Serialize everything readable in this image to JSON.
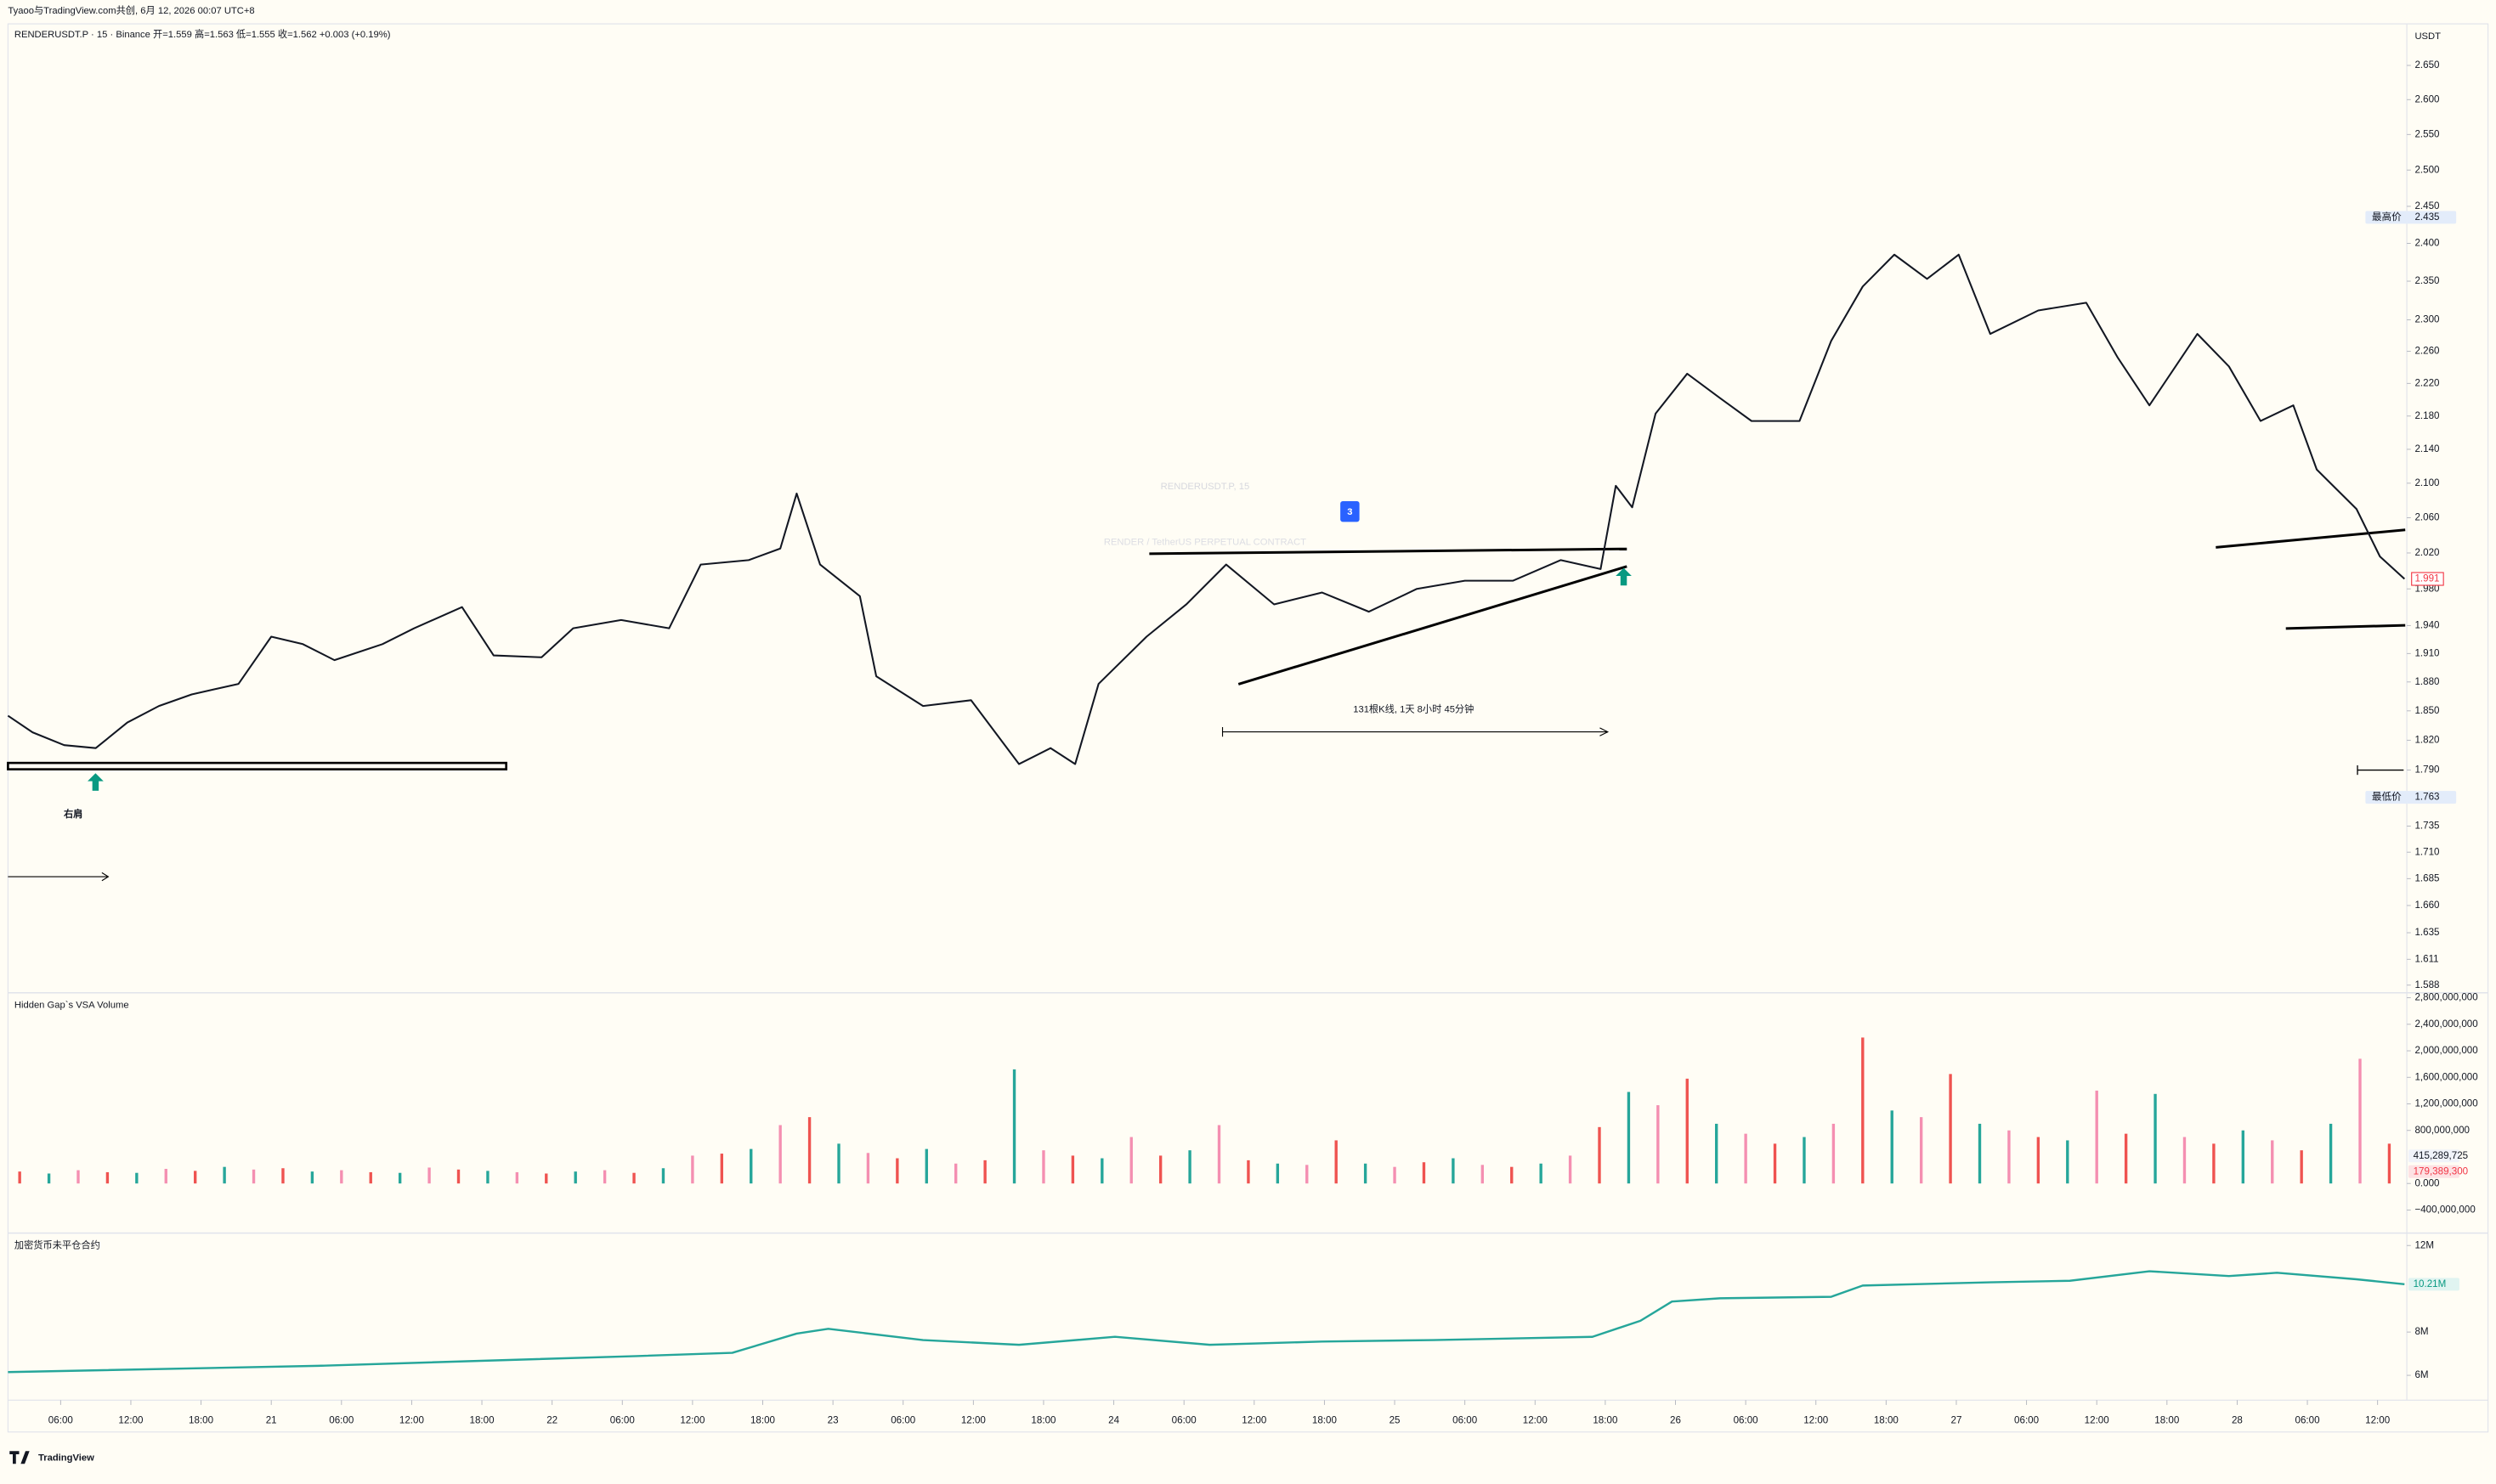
{
  "header": {
    "credit": "Tyaoo与TradingView.com共创, 6月 12, 2026 00:07 UTC+8",
    "logo": "TradingView"
  },
  "chart_data": [
    {
      "type": "line",
      "title": "RENDERUSDT.P, 15",
      "subtitle": "RENDER / TetherUS PERPETUAL CONTRACT",
      "legend": "RENDERUSDT.P · 15 · Binance  开=1.559  高=1.563  低=1.555  收=1.562  +0.003 (+0.19%)",
      "axis_unit": "USDT",
      "log": true,
      "grid": false,
      "color": "#131722",
      "x": [
        1.5,
        3.6,
        6.3,
        9.0,
        11.7,
        14.4,
        17.2,
        21.2,
        24.0,
        26.7,
        29.4,
        33.5,
        36.2,
        40.3,
        43.0,
        47.1,
        49.8,
        53.9,
        58.0,
        60.7,
        64.8,
        67.5,
        68.9,
        70.9,
        74.3,
        75.7,
        79.7,
        83.8,
        87.9,
        90.6,
        92.7,
        94.7,
        98.8,
        102.2,
        105.6,
        109.7,
        113.8,
        117.8,
        121.9,
        126.0,
        130.1,
        134.2,
        137.6,
        138.9,
        140.3,
        142.3,
        145.0,
        147.8,
        150.5,
        154.6,
        157.3,
        160.0,
        162.7,
        165.5,
        168.2,
        170.9,
        175.0,
        179.1,
        181.8,
        184.5,
        188.6,
        191.3,
        194.0,
        196.8,
        198.8,
        202.2,
        204.2,
        206.3
      ],
      "values": [
        1.845,
        1.828,
        1.815,
        1.812,
        1.838,
        1.855,
        1.867,
        1.878,
        1.928,
        1.92,
        1.903,
        1.92,
        1.937,
        1.96,
        1.908,
        1.906,
        1.937,
        1.946,
        1.937,
        2.007,
        2.012,
        2.025,
        2.088,
        2.007,
        1.972,
        1.886,
        1.855,
        1.861,
        1.796,
        1.812,
        1.796,
        1.878,
        1.928,
        1.963,
        2.007,
        1.963,
        1.976,
        1.955,
        1.98,
        1.989,
        1.989,
        2.012,
        2.002,
        2.097,
        2.072,
        2.183,
        2.232,
        2.202,
        2.174,
        2.174,
        2.273,
        2.343,
        2.385,
        2.353,
        2.385,
        2.282,
        2.312,
        2.322,
        2.252,
        2.193,
        2.282,
        2.241,
        2.174,
        2.193,
        2.116,
        2.07,
        2.016,
        1.991
      ],
      "xlim": [
        1.5,
        206.5
      ],
      "ylim": [
        1.584,
        2.712
      ],
      "yticks": [
        {
          "value": 2.65,
          "label": "2.650"
        },
        {
          "value": 2.6,
          "label": "2.600"
        },
        {
          "value": 2.55,
          "label": "2.550"
        },
        {
          "value": 2.5,
          "label": "2.500"
        },
        {
          "value": 2.45,
          "label": "2.450"
        },
        {
          "value": 2.4,
          "label": "2.400"
        },
        {
          "value": 2.35,
          "label": "2.350"
        },
        {
          "value": 2.3,
          "label": "2.300"
        },
        {
          "value": 2.26,
          "label": "2.260"
        },
        {
          "value": 2.22,
          "label": "2.220"
        },
        {
          "value": 2.18,
          "label": "2.180"
        },
        {
          "value": 2.14,
          "label": "2.140"
        },
        {
          "value": 2.1,
          "label": "2.100"
        },
        {
          "value": 2.06,
          "label": "2.060"
        },
        {
          "value": 2.02,
          "label": "2.020"
        },
        {
          "value": 1.98,
          "label": "1.980"
        },
        {
          "value": 1.94,
          "label": "1.940"
        },
        {
          "value": 1.91,
          "label": "1.910"
        },
        {
          "value": 1.88,
          "label": "1.880"
        },
        {
          "value": 1.85,
          "label": "1.850"
        },
        {
          "value": 1.82,
          "label": "1.820"
        },
        {
          "value": 1.79,
          "label": "1.790"
        },
        1.735,
        {
          "value": 1.71,
          "label": "1.710"
        },
        1.685,
        {
          "value": 1.66,
          "label": "1.660"
        },
        1.635,
        1.611,
        1.588
      ],
      "high_label": "最高价",
      "high": 2.435,
      "low_label": "最低价",
      "low": 1.763,
      "last": 1.991,
      "annotations": {
        "shoulder": "右肩",
        "measure": "131根K线, 1天 8小时 45分钟",
        "badge": "3"
      }
    },
    {
      "type": "bar",
      "title": "Hidden Gap`s VSA Volume",
      "colors": [
        "#ef5350",
        "#26a69a",
        "#f48fb1"
      ],
      "x": [
        2.5,
        5,
        7.5,
        10,
        12.5,
        15,
        17.5,
        20,
        22.5,
        25,
        27.5,
        30,
        32.5,
        35,
        37.5,
        40,
        42.5,
        45,
        47.5,
        50,
        52.5,
        55,
        57.5,
        60,
        62.5,
        65,
        67.5,
        70,
        72.5,
        75,
        77.5,
        80,
        82.5,
        85,
        87.5,
        90,
        92.5,
        95,
        97.5,
        100,
        102.5,
        105,
        107.5,
        110,
        112.5,
        115,
        117.5,
        120,
        122.5,
        125,
        127.5,
        130,
        132.5,
        135,
        137.5,
        140,
        142.5,
        145,
        147.5,
        150,
        152.5,
        155,
        157.5,
        160,
        162.5,
        165,
        167.5,
        170,
        172.5,
        175,
        177.5,
        180,
        182.5,
        185,
        187.5,
        190,
        192.5,
        195,
        197.5,
        200,
        202.5,
        205
      ],
      "values": [
        180000000,
        150000000,
        200000000,
        170000000,
        160000000,
        220000000,
        190000000,
        250000000,
        210000000,
        230000000,
        180000000,
        200000000,
        170000000,
        160000000,
        240000000,
        210000000,
        190000000,
        170000000,
        150000000,
        180000000,
        200000000,
        160000000,
        230000000,
        420000000,
        450000000,
        520000000,
        880000000,
        1000000000,
        600000000,
        460000000,
        380000000,
        520000000,
        300000000,
        350000000,
        1720000000,
        500000000,
        420000000,
        380000000,
        700000000,
        420000000,
        500000000,
        880000000,
        350000000,
        300000000,
        280000000,
        650000000,
        300000000,
        250000000,
        320000000,
        380000000,
        280000000,
        250000000,
        300000000,
        420000000,
        850000000,
        1380000000,
        1180000000,
        1580000000,
        900000000,
        750000000,
        600000000,
        700000000,
        900000000,
        2200000000,
        1100000000,
        1000000000,
        1650000000,
        900000000,
        800000000,
        700000000,
        650000000,
        1400000000,
        750000000,
        1350000000,
        700000000,
        600000000,
        800000000,
        650000000,
        500000000,
        900000000,
        1880000000,
        600000000
      ],
      "xlim": [
        1.5,
        206.5
      ],
      "ylim": [
        -700000000,
        2850000000
      ],
      "yticks": [
        {
          "value": 2800000000,
          "label": "2,800,000,000"
        },
        {
          "value": 2400000000,
          "label": "2,400,000,000"
        },
        {
          "value": 2000000000,
          "label": "2,000,000,000"
        },
        {
          "value": 1600000000,
          "label": "1,600,000,000"
        },
        {
          "value": 1200000000,
          "label": "1,200,000,000"
        },
        {
          "value": 800000000,
          "label": "800,000,000"
        },
        {
          "value": 0,
          "label": "0.000"
        },
        {
          "value": -400000000,
          "label": "−400,000,000"
        }
      ],
      "last_values": [
        {
          "value": 415289725,
          "label": "415,289,725"
        },
        {
          "value": 179389300,
          "label": "179,389,300"
        }
      ]
    },
    {
      "type": "line",
      "title": "加密货币未平仓合约",
      "color": "#26a69a",
      "x": [
        1.5,
        28.0,
        55.2,
        63.4,
        68.9,
        71.6,
        79.7,
        87.9,
        96.1,
        104.2,
        113.8,
        123.3,
        136.9,
        141.0,
        143.7,
        147.8,
        157.3,
        160.0,
        170.9,
        177.7,
        184.5,
        191.3,
        195.4,
        202.2,
        206.3
      ],
      "values": [
        6.15,
        6.44,
        6.89,
        7.04,
        7.93,
        8.15,
        7.63,
        7.41,
        7.78,
        7.41,
        7.56,
        7.63,
        7.78,
        8.52,
        9.41,
        9.56,
        9.63,
        10.15,
        10.3,
        10.37,
        10.81,
        10.59,
        10.74,
        10.44,
        10.21
      ],
      "xlim": [
        1.5,
        206.5
      ],
      "ylim": [
        5,
        12.5
      ],
      "yticks": [
        {
          "value": 12,
          "label": "12M"
        },
        {
          "value": 8,
          "label": "8M"
        },
        {
          "value": 6,
          "label": "6M"
        }
      ],
      "last": {
        "value": 10.21,
        "label": "10.21M"
      },
      "xticks": [
        {
          "value": 6,
          "label": "06:00"
        },
        {
          "value": 12,
          "label": "12:00"
        },
        {
          "value": 18,
          "label": "18:00"
        },
        {
          "value": 24,
          "label": "21"
        },
        {
          "value": 30,
          "label": "06:00"
        },
        {
          "value": 36,
          "label": "12:00"
        },
        {
          "value": 42,
          "label": "18:00"
        },
        {
          "value": 48,
          "label": "22"
        },
        {
          "value": 54,
          "label": "06:00"
        },
        {
          "value": 60,
          "label": "12:00"
        },
        {
          "value": 66,
          "label": "18:00"
        },
        {
          "value": 72,
          "label": "23"
        },
        {
          "value": 78,
          "label": "06:00"
        },
        {
          "value": 84,
          "label": "12:00"
        },
        {
          "value": 90,
          "label": "18:00"
        },
        {
          "value": 96,
          "label": "24"
        },
        {
          "value": 102,
          "label": "06:00"
        },
        {
          "value": 108,
          "label": "12:00"
        },
        {
          "value": 114,
          "label": "18:00"
        },
        {
          "value": 120,
          "label": "25"
        },
        {
          "value": 126,
          "label": "06:00"
        },
        {
          "value": 132,
          "label": "12:00"
        },
        {
          "value": 138,
          "label": "18:00"
        },
        {
          "value": 144,
          "label": "26"
        },
        {
          "value": 150,
          "label": "06:00"
        },
        {
          "value": 156,
          "label": "12:00"
        },
        {
          "value": 162,
          "label": "18:00"
        },
        {
          "value": 168,
          "label": "27"
        },
        {
          "value": 174,
          "label": "06:00"
        },
        {
          "value": 180,
          "label": "12:00"
        },
        {
          "value": 186,
          "label": "18:00"
        },
        {
          "value": 192,
          "label": "28"
        },
        {
          "value": 198,
          "label": "06:00"
        },
        {
          "value": 204,
          "label": "12:00"
        }
      ]
    }
  ]
}
